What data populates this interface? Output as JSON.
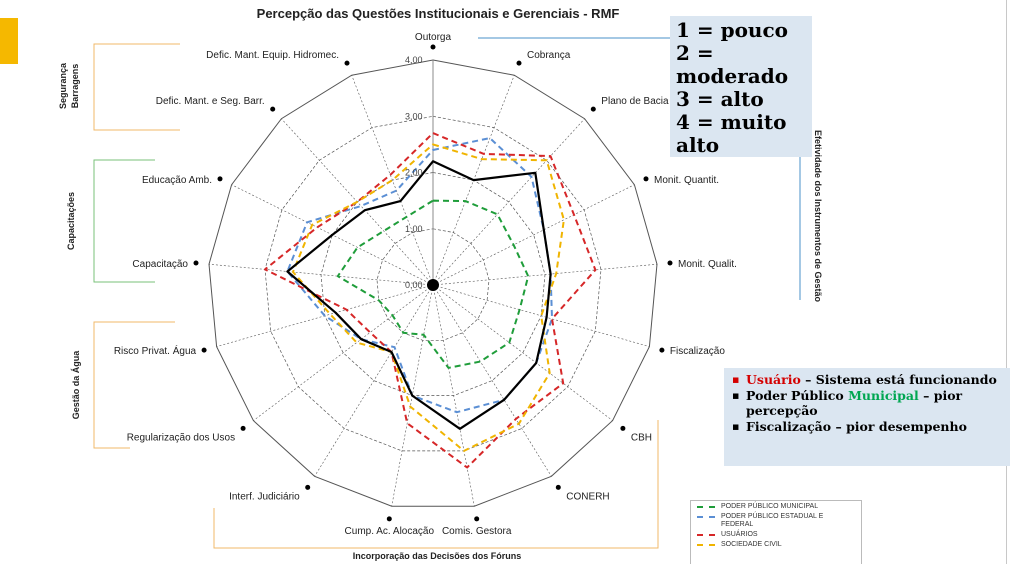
{
  "colors": {
    "accent": "#f5b800",
    "grid": "#555555",
    "group_bracket": "#f0b96a",
    "capacitacoes_bracket": "#7ac27a",
    "efetividade_bracket": "#4a90c8",
    "note_highlight_red": "#d40000",
    "note_highlight_green": "#00a651"
  },
  "chart_data": {
    "type": "radar",
    "title": "Percepção das Questões Institucionais e Gerenciais - RMF",
    "axes": [
      "Outorga",
      "Cobrança",
      "Plano de Bacia",
      "Monit. Quantit.",
      "Monit. Qualit.",
      "Fiscalização",
      "CBH",
      "CONERH",
      "Comis. Gestora",
      "Cump. Ac. Alocação",
      "Interf. Judiciário",
      "Regularização dos Usos",
      "Risco Privat. Água",
      "Capacitação",
      "Educação Amb.",
      "Defic. Mant. e Seg. Barr.",
      "Defic. Mant. Equip. Hidromec."
    ],
    "rlim": [
      0,
      4
    ],
    "ticks": [
      "0,00",
      "1,00",
      "2,00",
      "3,00",
      "4,00"
    ],
    "grid": true,
    "series": [
      {
        "name": "PODER PÚBLICO MUNICIPAL",
        "color": "#1f9d3a",
        "style": "dashed",
        "values": [
          1.5,
          1.6,
          1.7,
          1.6,
          1.7,
          1.6,
          1.7,
          1.6,
          1.5,
          0.9,
          1.0,
          0.9,
          1.0,
          1.7,
          1.5,
          1.3,
          1.3
        ]
      },
      {
        "name": "PODER PÚBLICO ESTADUAL E FEDERAL",
        "color": "#5b8fd4",
        "style": "dashed",
        "values": [
          2.4,
          2.8,
          2.6,
          2.2,
          2.1,
          2.2,
          2.3,
          2.4,
          2.3,
          2.0,
          1.3,
          1.6,
          2.0,
          2.6,
          2.5,
          1.9,
          1.8
        ]
      },
      {
        "name": "USUÁRIOS",
        "color": "#d62728",
        "style": "dashed",
        "values": [
          2.7,
          2.5,
          3.1,
          2.8,
          2.9,
          2.2,
          2.9,
          2.8,
          3.3,
          2.5,
          1.4,
          1.4,
          1.6,
          3.0,
          2.3,
          2.0,
          2.1
        ]
      },
      {
        "name": "SOCIEDADE CIVIL",
        "color": "#f0b400",
        "style": "dashed",
        "values": [
          2.5,
          2.4,
          3.0,
          2.6,
          2.2,
          2.0,
          2.6,
          2.9,
          3.0,
          2.2,
          1.4,
          1.7,
          1.9,
          2.5,
          2.4,
          2.0,
          2.0
        ]
      },
      {
        "name": "",
        "color": "#000000",
        "style": "solid",
        "values": [
          2.2,
          2.0,
          2.7,
          2.2,
          2.1,
          2.1,
          2.3,
          2.4,
          2.6,
          2.0,
          1.4,
          1.6,
          1.8,
          2.6,
          2.0,
          1.8,
          1.6
        ]
      }
    ],
    "groups": [
      {
        "label": "Segurança Barragens",
        "side": "left"
      },
      {
        "label": "Capacitações",
        "side": "left"
      },
      {
        "label": "Gestão da Água",
        "side": "left"
      },
      {
        "label": "Incorporação das Decisões dos Fóruns",
        "side": "bottom"
      },
      {
        "label": "Efetividade dos Instrumentos de Gestão",
        "side": "right"
      }
    ]
  },
  "scale_box": {
    "lines": [
      "1 = pouco",
      "2 = moderado",
      "3 = alto",
      "4 = muito alto"
    ]
  },
  "notes": {
    "n1_highlight": "Usuário",
    "n1_rest": " – Sistema está funcionando",
    "n2_start": "Poder Público ",
    "n2_highlight": "Municipal",
    "n2_rest": " – pior percepção",
    "n3": "Fiscalização – pior desempenho"
  },
  "legend_labels": [
    "PODER PÚBLICO MUNICIPAL",
    "PODER PÚBLICO ESTADUAL E FEDERAL",
    "USUÁRIOS",
    "SOCIEDADE CIVIL"
  ]
}
